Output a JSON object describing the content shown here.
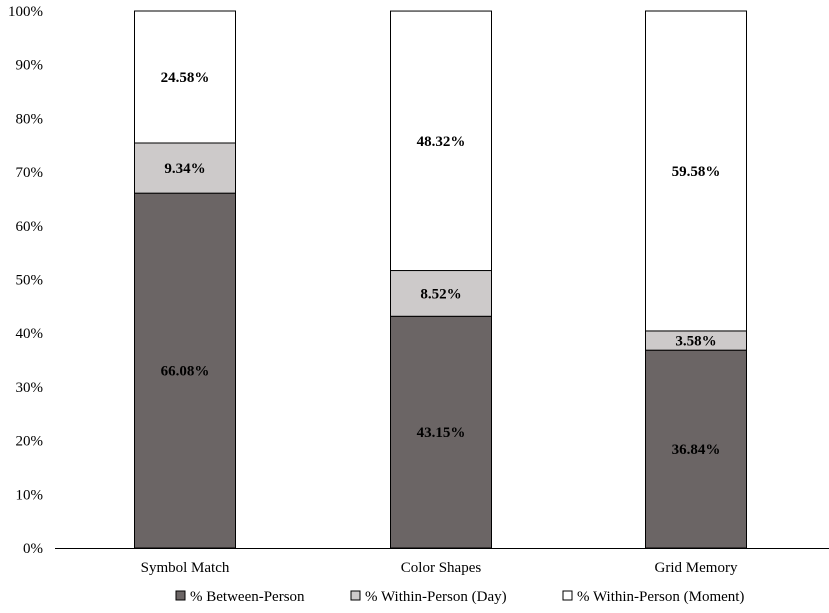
{
  "chart_data": {
    "type": "bar",
    "stacked": true,
    "categories": [
      "Symbol Match",
      "Color Shapes",
      "Grid Memory"
    ],
    "series": [
      {
        "name": "% Between-Person",
        "values": [
          66.08,
          43.15,
          36.84
        ],
        "color": "#6b6565"
      },
      {
        "name": "% Within-Person (Day)",
        "values": [
          9.34,
          8.52,
          3.58
        ],
        "color": "#cdcaca"
      },
      {
        "name": "% Within-Person (Moment)",
        "values": [
          24.58,
          48.32,
          59.58
        ],
        "color": "#ffffff"
      }
    ],
    "data_labels": [
      [
        "66.08%",
        "43.15%",
        "36.84%"
      ],
      [
        "9.34%",
        "8.52%",
        "3.58%"
      ],
      [
        "24.58%",
        "48.32%",
        "59.58%"
      ]
    ],
    "yticks": [
      "0%",
      "10%",
      "20%",
      "30%",
      "40%",
      "50%",
      "60%",
      "70%",
      "80%",
      "90%",
      "100%"
    ],
    "ylim": [
      0,
      100
    ],
    "grid": false,
    "legend_position": "bottom",
    "title": "",
    "xlabel": "",
    "ylabel": ""
  }
}
